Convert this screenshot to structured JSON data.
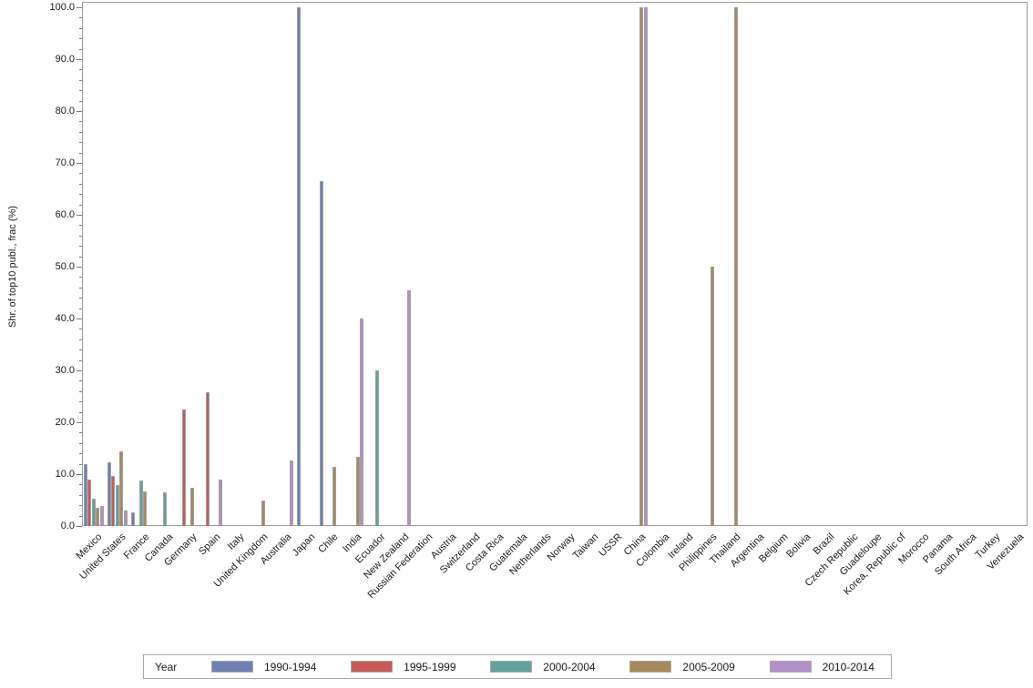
{
  "chart_data": {
    "type": "bar",
    "title": "",
    "xlabel": "",
    "ylabel": "Shr. of top10 publ., frac (%)",
    "ylim": [
      0,
      100
    ],
    "y_tick_labels": [
      "0.0",
      "10.0",
      "20.0",
      "30.0",
      "40.0",
      "50.0",
      "60.0",
      "70.0",
      "80.0",
      "90.0",
      "100.0"
    ],
    "y_major_tick_step": 10,
    "y_minor_tick_step": 2,
    "grid": "off",
    "legend_position": "bottom",
    "legend_title": "Year",
    "axis_color": "#7a7a7a",
    "bar_border_color": "#a0a0a0",
    "categories": [
      "Mexico",
      "United States",
      "France",
      "Canada",
      "Germany",
      "Spain",
      "Italy",
      "United Kingdom",
      "Australia",
      "Japan",
      "Chile",
      "India",
      "Ecuador",
      "New Zealand",
      "Russian Federation",
      "Austria",
      "Switzerland",
      "Costa Rica",
      "Guatemala",
      "Netherlands",
      "Norway",
      "Taiwan",
      "USSR",
      "China",
      "Colombia",
      "Ireland",
      "Philippines",
      "Thailand",
      "Argentina",
      "Belgium",
      "Bolivia",
      "Brazil",
      "Czech Republic",
      "Guadeloupe",
      "Korea, Republic of",
      "Morocco",
      "Panama",
      "South Africa",
      "Turkey",
      "Venezuela"
    ],
    "series": [
      {
        "name": "1990-1994",
        "color": "#6e80b3",
        "values": [
          12.0,
          12.3,
          2.6,
          0,
          0,
          0,
          0,
          0,
          0,
          100.0,
          66.5,
          0,
          0,
          0,
          0,
          0,
          0,
          0,
          0,
          0,
          0,
          0,
          0,
          0,
          0,
          0,
          0,
          0,
          0,
          0,
          0,
          0,
          0,
          0,
          0,
          0,
          0,
          0,
          0,
          0
        ]
      },
      {
        "name": "1995-1999",
        "color": "#c65b57",
        "values": [
          8.9,
          9.7,
          0,
          0,
          22.4,
          25.8,
          0,
          0,
          0,
          0,
          0,
          0,
          0,
          0,
          0,
          0,
          0,
          0,
          0,
          0,
          0,
          0,
          0,
          0,
          0,
          0,
          0,
          0,
          0,
          0,
          0,
          0,
          0,
          0,
          0,
          0,
          0,
          0,
          0,
          0
        ]
      },
      {
        "name": "2000-2004",
        "color": "#63a29c",
        "values": [
          5.2,
          7.9,
          8.8,
          6.5,
          0,
          0,
          0,
          0,
          0,
          0,
          0,
          0,
          30.0,
          0,
          0,
          0,
          0,
          0,
          0,
          0,
          0,
          0,
          0,
          0,
          0,
          0,
          0,
          0,
          0,
          0,
          0,
          0,
          0,
          0,
          0,
          0,
          0,
          0,
          0,
          0
        ]
      },
      {
        "name": "2005-2009",
        "color": "#a78a59",
        "values": [
          3.5,
          14.3,
          6.7,
          0,
          7.4,
          0,
          0,
          4.9,
          0,
          0,
          11.4,
          13.4,
          0,
          0,
          0,
          0,
          0,
          0,
          0,
          0,
          0,
          0,
          0,
          100.0,
          0,
          0,
          50.0,
          100.0,
          0,
          0,
          0,
          0,
          0,
          0,
          0,
          0,
          0,
          0,
          0,
          0
        ]
      },
      {
        "name": "2010-2014",
        "color": "#b48fc8",
        "values": [
          3.9,
          3.0,
          0,
          0,
          0,
          8.9,
          0,
          0,
          12.6,
          0,
          0,
          40.0,
          0,
          45.4,
          0,
          0,
          0,
          0,
          0,
          0,
          0,
          0,
          0,
          100.0,
          0,
          0,
          0,
          0,
          0,
          0,
          0,
          0,
          0,
          0,
          0,
          0,
          0,
          0,
          0,
          0
        ]
      }
    ]
  }
}
